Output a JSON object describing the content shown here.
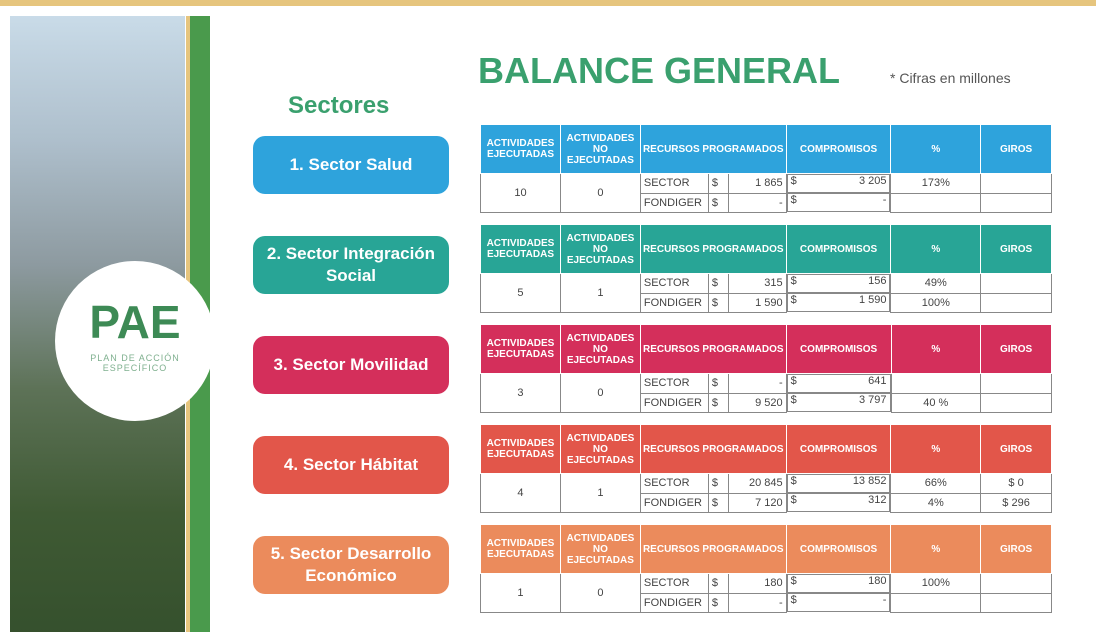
{
  "header": {
    "title": "BALANCE GENERAL",
    "note": "* Cifras en millones"
  },
  "sidebar": {
    "logo": "PAE",
    "logo_subtitle": "PLAN DE ACCIÓN ESPECÍFICO",
    "heading": "Sectores"
  },
  "table_headers": [
    "ACTIVIDADES EJECUTADAS",
    "ACTIVIDADES NO EJECUTADAS",
    "RECURSOS PROGRAMADOS",
    "COMPROMISOS",
    "%",
    "GIROS"
  ],
  "sectors": [
    {
      "name": "1. Sector Salud",
      "color": "#2ea3dc",
      "ejecutadas": 10,
      "no_ejecutadas": 0,
      "rows": [
        {
          "label": "SECTOR",
          "recursos": [
            "$",
            "1 865"
          ],
          "compromisos": [
            "$",
            "3 205"
          ],
          "pct": "173%"
        },
        {
          "label": "FONDIGER",
          "recursos": [
            "$",
            "-"
          ],
          "compromisos": [
            "$",
            "-"
          ]
        }
      ]
    },
    {
      "name": "2. Sector Integración Social",
      "color": "#28a596",
      "ejecutadas": 5,
      "no_ejecutadas": 1,
      "rows": [
        {
          "label": "SECTOR",
          "recursos": [
            "$",
            "315"
          ],
          "compromisos": [
            "$",
            "156"
          ],
          "pct": "49%"
        },
        {
          "label": "FONDIGER",
          "recursos": [
            "$",
            "1 590"
          ],
          "compromisos": [
            "$",
            "1 590"
          ],
          "pct": "100%"
        }
      ]
    },
    {
      "name": "3. Sector Movilidad",
      "color": "#d42f5b",
      "ejecutadas": 3,
      "no_ejecutadas": 0,
      "rows": [
        {
          "label": "SECTOR",
          "recursos": [
            "$",
            "-"
          ],
          "compromisos": [
            "$",
            "641"
          ]
        },
        {
          "label": "FONDIGER",
          "recursos": [
            "$",
            "9 520"
          ],
          "compromisos": [
            "$",
            "3 797"
          ],
          "pct": "40 %"
        }
      ]
    },
    {
      "name": "4. Sector Hábitat",
      "color": "#e2564a",
      "ejecutadas": 4,
      "no_ejecutadas": 1,
      "rows": [
        {
          "label": "SECTOR",
          "recursos": [
            "$",
            "20 845"
          ],
          "compromisos": [
            "$",
            "13 852"
          ],
          "pct": "66%",
          "giros": "$ 0"
        },
        {
          "label": "FONDIGER",
          "recursos": [
            "$",
            "7 120"
          ],
          "compromisos": [
            "$",
            "312"
          ],
          "pct": "4%",
          "giros": "$ 296"
        }
      ]
    },
    {
      "name": "5. Sector Desarrollo Económico",
      "color": "#eb8b5c",
      "ejecutadas": 1,
      "no_ejecutadas": 0,
      "rows": [
        {
          "label": "SECTOR",
          "recursos": [
            "$",
            "180"
          ],
          "compromisos": [
            "$",
            "180"
          ],
          "pct": "100%"
        },
        {
          "label": "FONDIGER",
          "recursos": [
            "$",
            "-"
          ],
          "compromisos": [
            "$",
            "-"
          ]
        }
      ]
    }
  ]
}
